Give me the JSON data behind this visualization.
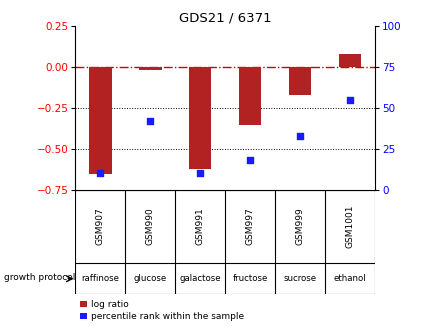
{
  "title": "GDS21 / 6371",
  "samples": [
    "GSM907",
    "GSM990",
    "GSM991",
    "GSM997",
    "GSM999",
    "GSM1001"
  ],
  "protocols": [
    "raffinose",
    "glucose",
    "galactose",
    "fructose",
    "sucrose",
    "ethanol"
  ],
  "log_ratio": [
    -0.655,
    -0.02,
    -0.625,
    -0.355,
    -0.17,
    0.082
  ],
  "percentile": [
    10,
    42,
    10,
    18,
    33,
    55
  ],
  "ylim_left": [
    -0.75,
    0.25
  ],
  "ylim_right": [
    0,
    100
  ],
  "yticks_left": [
    0.25,
    0,
    -0.25,
    -0.5,
    -0.75
  ],
  "yticks_right": [
    100,
    75,
    50,
    25,
    0
  ],
  "bar_color": "#b22222",
  "scatter_color": "#1a1aff",
  "dashed_line_color": "#cc0000",
  "grid_color": "#000000",
  "bg_color": "#ffffff",
  "plot_bg": "#ffffff",
  "protocol_bg": "#90ee90",
  "sample_bg": "#c8c8c8",
  "legend_label_ratio": "log ratio",
  "legend_label_pct": "percentile rank within the sample",
  "growth_protocol_label": "growth protocol"
}
